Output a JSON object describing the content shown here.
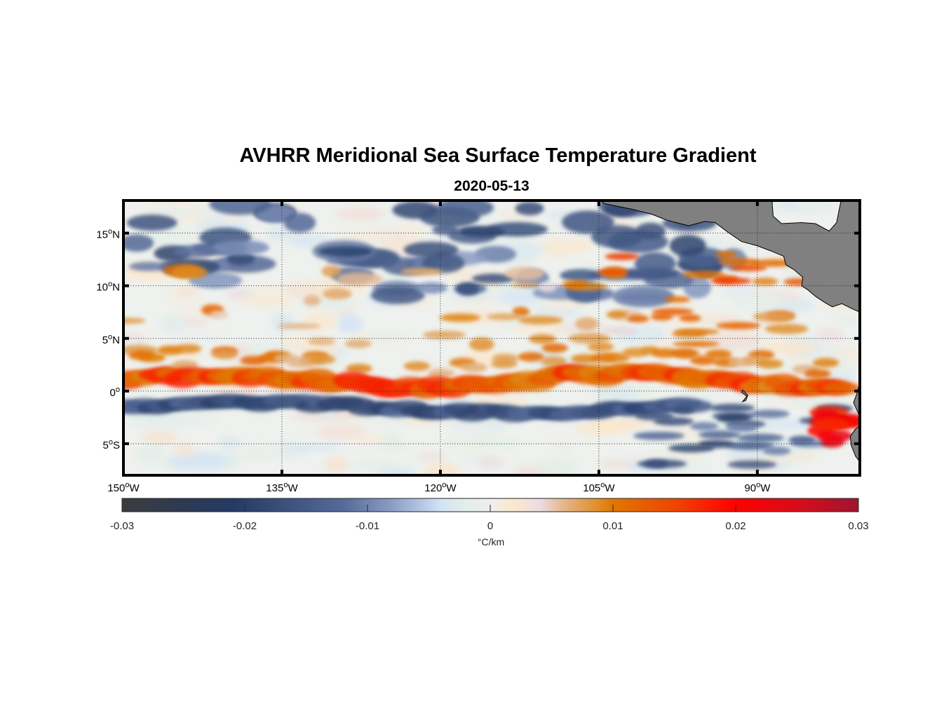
{
  "figure": {
    "title": "AVHRR Meridional Sea Surface Temperature Gradient",
    "subtitle": "2020-05-13"
  },
  "chart_data": {
    "type": "heatmap",
    "title": "AVHRR Meridional Sea Surface Temperature Gradient",
    "subtitle": "2020-05-13",
    "xlabel": "",
    "ylabel": "",
    "x_range_deg_lon": [
      -150,
      -80.3
    ],
    "y_range_deg_lat": [
      -8.0,
      18.1
    ],
    "x_ticks": [
      {
        "value": -150,
        "label": "150°W",
        "deg": "150",
        "suffix": "W"
      },
      {
        "value": -135,
        "label": "135°W",
        "deg": "135",
        "suffix": "W"
      },
      {
        "value": -120,
        "label": "120°W",
        "deg": "120",
        "suffix": "W"
      },
      {
        "value": -105,
        "label": "105°W",
        "deg": "105",
        "suffix": "W"
      },
      {
        "value": -90,
        "label": "90°W",
        "deg": "90",
        "suffix": "W"
      }
    ],
    "y_ticks": [
      {
        "value": 15,
        "label": "15°N",
        "deg": "15",
        "suffix": "N"
      },
      {
        "value": 10,
        "label": "10°N",
        "deg": "10",
        "suffix": "N"
      },
      {
        "value": 5,
        "label": "5°N",
        "deg": "5",
        "suffix": "N"
      },
      {
        "value": 0,
        "label": "0°",
        "deg": "0",
        "suffix": ""
      },
      {
        "value": -5,
        "label": "5°S",
        "deg": "5",
        "suffix": "S"
      }
    ],
    "grid": "dotted",
    "land_color": "#808080",
    "colorbar": {
      "label": "°C/km",
      "range": [
        -0.03,
        0.03
      ],
      "ticks": [
        -0.03,
        -0.02,
        -0.01,
        0,
        0.01,
        0.02,
        0.03
      ],
      "tick_labels": [
        "-0.03",
        "-0.02",
        "-0.01",
        "0",
        "0.01",
        "0.02",
        "0.03"
      ],
      "placement": "bottom",
      "colormap_stops": [
        {
          "value": -0.03,
          "color": "#3b3b3e"
        },
        {
          "value": -0.021,
          "color": "#243a63"
        },
        {
          "value": -0.012,
          "color": "#556a98"
        },
        {
          "value": -0.008,
          "color": "#8a9dc4"
        },
        {
          "value": -0.004,
          "color": "#d3e3f7"
        },
        {
          "value": -0.002,
          "color": "#e3eee8"
        },
        {
          "value": 0,
          "color": "#eeeeee"
        },
        {
          "value": 0.002,
          "color": "#fbe8cc"
        },
        {
          "value": 0.004,
          "color": "#eadde3"
        },
        {
          "value": 0.006,
          "color": "#e3b68c"
        },
        {
          "value": 0.009,
          "color": "#df8a1e"
        },
        {
          "value": 0.01,
          "color": "#e07600"
        },
        {
          "value": 0.015,
          "color": "#ee4500"
        },
        {
          "value": 0.02,
          "color": "#ff0000"
        },
        {
          "value": 0.025,
          "color": "#d70d1a"
        },
        {
          "value": 0.03,
          "color": "#a01530"
        }
      ]
    },
    "features": [
      {
        "name": "equatorial-warm-front-band",
        "lat_center": 1.2,
        "lon_range": [
          -150,
          -83
        ],
        "value_approx": 0.012,
        "description": "continuous positive (orange-red) band just north of equator"
      },
      {
        "name": "south-equatorial-cold-band",
        "lat_center": -1.5,
        "lon_range": [
          -150,
          -95
        ],
        "value_approx": -0.015,
        "description": "negative (dark blue) band just south of equator"
      },
      {
        "name": "north-scattered-negatives",
        "lat_range": [
          9,
          18
        ],
        "lon_range": [
          -150,
          -110
        ],
        "value_approx": -0.014
      },
      {
        "name": "peru-coast-positive",
        "lat_center": -3,
        "lon_center": -82,
        "value_approx": 0.02
      },
      {
        "name": "central-america-coast-positives",
        "lat_range": [
          5,
          13
        ],
        "lon_range": [
          -105,
          -88
        ],
        "value_approx": 0.01
      }
    ]
  }
}
